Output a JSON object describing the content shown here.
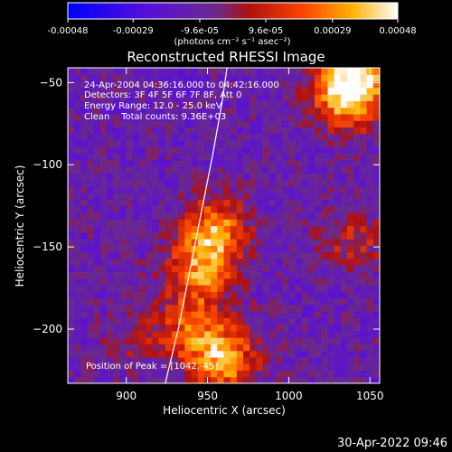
{
  "colorbar": {
    "tick_labels": [
      "-0.00048",
      "-0.00029",
      "-9.6e-05",
      "9.6e-05",
      "0.00029",
      "0.00048"
    ],
    "tick_values": [
      -0.00048,
      -0.00029,
      -9.6e-05,
      9.6e-05,
      0.00029,
      0.00048
    ],
    "range": [
      -0.00048,
      0.00048
    ],
    "units_label": "(photons cm⁻² s⁻¹ asec⁻²)"
  },
  "chart_data": {
    "type": "heatmap",
    "title": "Reconstructed RHESSI Image",
    "xlabel": "Heliocentric X (arcsec)",
    "ylabel": "Heliocentric Y (arcsec)",
    "xlim": [
      864,
      1056
    ],
    "ylim": [
      -233,
      -41
    ],
    "x_ticks": [
      900,
      950,
      1000,
      1050
    ],
    "y_ticks": [
      -50,
      -100,
      -150,
      -200
    ],
    "x_tick_labels": [
      "900",
      "950",
      "1000",
      "1050"
    ],
    "y_tick_labels": [
      "−50",
      "−100",
      "−150",
      "−200"
    ],
    "annotations": [
      "24-Apr-2004 04:36:16.000 to 04:42:16.000",
      "Detectors: 3F 4F 5F 6F 7F 8F, Att 0",
      "Energy Range: 12.0 - 25.0 keV",
      "Clean    Total counts: 9.36E+03"
    ],
    "peak_label": "Position of Peak = [1042,-45]",
    "limb_curve": [
      [
        924,
        -233
      ],
      [
        932,
        -200
      ],
      [
        940,
        -160
      ],
      [
        946,
        -130
      ],
      [
        953,
        -95
      ],
      [
        959,
        -62
      ],
      [
        962,
        -41
      ]
    ],
    "hot_regions": [
      {
        "x": 955,
        "y": -140,
        "value": 0.00042
      },
      {
        "x": 945,
        "y": -165,
        "value": 0.00038
      },
      {
        "x": 940,
        "y": -200,
        "value": 0.0003
      },
      {
        "x": 960,
        "y": -218,
        "value": 0.00045
      },
      {
        "x": 1042,
        "y": -45,
        "value": 0.00048
      },
      {
        "x": 1035,
        "y": -60,
        "value": 0.0004
      },
      {
        "x": 1040,
        "y": -145,
        "value": 0.0002
      },
      {
        "x": 905,
        "y": -205,
        "value": 0.00012
      }
    ]
  },
  "footer": {
    "timestamp": "30-Apr-2022 09:46"
  }
}
